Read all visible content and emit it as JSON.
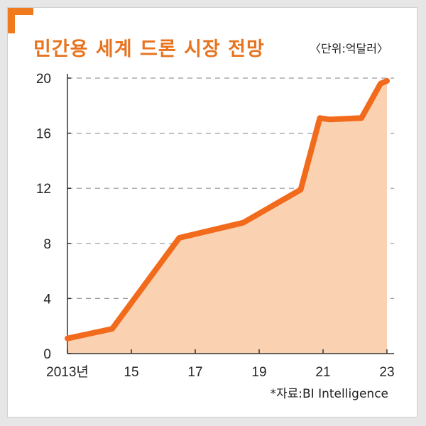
{
  "title": "민간용 세계 드론 시장 전망",
  "unit": "〈단위:억달러〉",
  "source": "*자료:BI Intelligence",
  "colors": {
    "accent": "#e8731f",
    "line": "#f26b1d",
    "fill": "#fbd2b1"
  },
  "chart_data": {
    "type": "area",
    "title": "민간용 세계 드론 시장 전망",
    "xlabel": "",
    "ylabel": "",
    "x_tick_labels": [
      "2013년",
      "15",
      "17",
      "19",
      "21",
      "23"
    ],
    "y_tick_labels": [
      "0",
      "4",
      "8",
      "12",
      "16",
      "20"
    ],
    "xlim": [
      2013,
      2023
    ],
    "ylim": [
      0,
      20
    ],
    "grid": true,
    "x": [
      2013,
      2014.4,
      2016.5,
      2018.5,
      2020.3,
      2020.9,
      2021.2,
      2022.2,
      2022.8,
      2023
    ],
    "values": [
      1.1,
      1.8,
      8.4,
      9.5,
      11.9,
      17.1,
      17.0,
      17.1,
      19.6,
      19.8
    ]
  }
}
